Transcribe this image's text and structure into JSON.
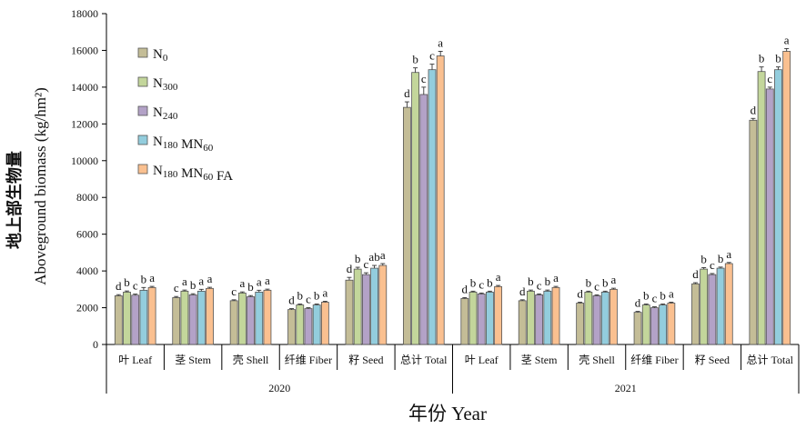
{
  "chart_data": {
    "type": "bar",
    "title": "",
    "ylabel_cn": "地上部生物量",
    "ylabel_en": "Aboveground biomass (kg/hm²)",
    "xlabel": "年份 Year",
    "ylim": [
      0,
      18000
    ],
    "yticks": [
      0,
      2000,
      4000,
      6000,
      8000,
      10000,
      12000,
      14000,
      16000,
      18000
    ],
    "years": [
      "2020",
      "2021"
    ],
    "categories": [
      "叶 Leaf",
      "茎 Stem",
      "壳 Shell",
      "纤维 Fiber",
      "籽 Seed",
      "总计 Total"
    ],
    "legend_position": "top-left",
    "grid": false,
    "series": [
      {
        "name": "N0",
        "color": "#C4BD97",
        "values_2020": [
          2650,
          2550,
          2380,
          1900,
          3500,
          12900
        ],
        "values_2021": [
          2500,
          2380,
          2250,
          1750,
          3300,
          12200
        ],
        "errors_2020": [
          60,
          60,
          50,
          50,
          150,
          300
        ],
        "errors_2021": [
          50,
          50,
          50,
          50,
          60,
          100
        ],
        "letters_2020": [
          "d",
          "c",
          "c",
          "d",
          "d",
          "d"
        ],
        "letters_2021": [
          "d",
          "d",
          "d",
          "d",
          "d",
          "d"
        ]
      },
      {
        "name": "N300",
        "color": "#C3D69B",
        "values_2020": [
          2850,
          2900,
          2800,
          2150,
          4100,
          14800
        ],
        "values_2021": [
          2850,
          2900,
          2850,
          2150,
          4100,
          14850
        ],
        "errors_2020": [
          60,
          60,
          60,
          50,
          100,
          250
        ],
        "errors_2021": [
          50,
          60,
          50,
          50,
          80,
          250
        ],
        "letters_2020": [
          "b",
          "a",
          "a",
          "b",
          "b",
          "b"
        ],
        "letters_2021": [
          "b",
          "b",
          "b",
          "b",
          "b",
          "b"
        ]
      },
      {
        "name": "N240",
        "color": "#B3A2C7",
        "values_2020": [
          2680,
          2700,
          2600,
          1950,
          3800,
          13600
        ],
        "values_2021": [
          2750,
          2700,
          2650,
          2000,
          3800,
          13900
        ],
        "errors_2020": [
          60,
          60,
          60,
          50,
          100,
          400
        ],
        "errors_2021": [
          50,
          50,
          50,
          50,
          60,
          100
        ],
        "letters_2020": [
          "c",
          "b",
          "b",
          "c",
          "c",
          "c"
        ],
        "letters_2021": [
          "c",
          "c",
          "c",
          "c",
          "c",
          "c"
        ]
      },
      {
        "name": "N180 MN60",
        "color": "#93CDDD",
        "values_2020": [
          2950,
          2900,
          2850,
          2150,
          4150,
          14950
        ],
        "values_2021": [
          2850,
          2900,
          2850,
          2150,
          4150,
          14950
        ],
        "errors_2020": [
          150,
          100,
          100,
          50,
          150,
          300
        ],
        "errors_2021": [
          50,
          60,
          50,
          50,
          60,
          150
        ],
        "letters_2020": [
          "b",
          "a",
          "a",
          "b",
          "ab",
          "c"
        ],
        "letters_2021": [
          "b",
          "b",
          "b",
          "b",
          "b",
          "b"
        ]
      },
      {
        "name": "N180 MN60 FA",
        "color": "#FAC090",
        "values_2020": [
          3100,
          3050,
          2950,
          2300,
          4300,
          15700
        ],
        "values_2021": [
          3150,
          3100,
          3000,
          2250,
          4400,
          15950
        ],
        "errors_2020": [
          60,
          60,
          60,
          50,
          100,
          250
        ],
        "errors_2021": [
          60,
          60,
          60,
          50,
          60,
          150
        ],
        "letters_2020": [
          "a",
          "a",
          "a",
          "a",
          "a",
          "a"
        ],
        "letters_2021": [
          "a",
          "a",
          "a",
          "a",
          "a",
          "a"
        ]
      }
    ]
  },
  "legend": [
    {
      "base": "N",
      "sub": "0"
    },
    {
      "base": "N",
      "sub": "300"
    },
    {
      "base": "N",
      "sub": "240"
    },
    {
      "base": "N",
      "sub": "180",
      "mid": " MN",
      "sub2": "60"
    },
    {
      "base": "N",
      "sub": "180",
      "mid": " MN",
      "sub2": "60",
      "tail": " FA"
    }
  ]
}
